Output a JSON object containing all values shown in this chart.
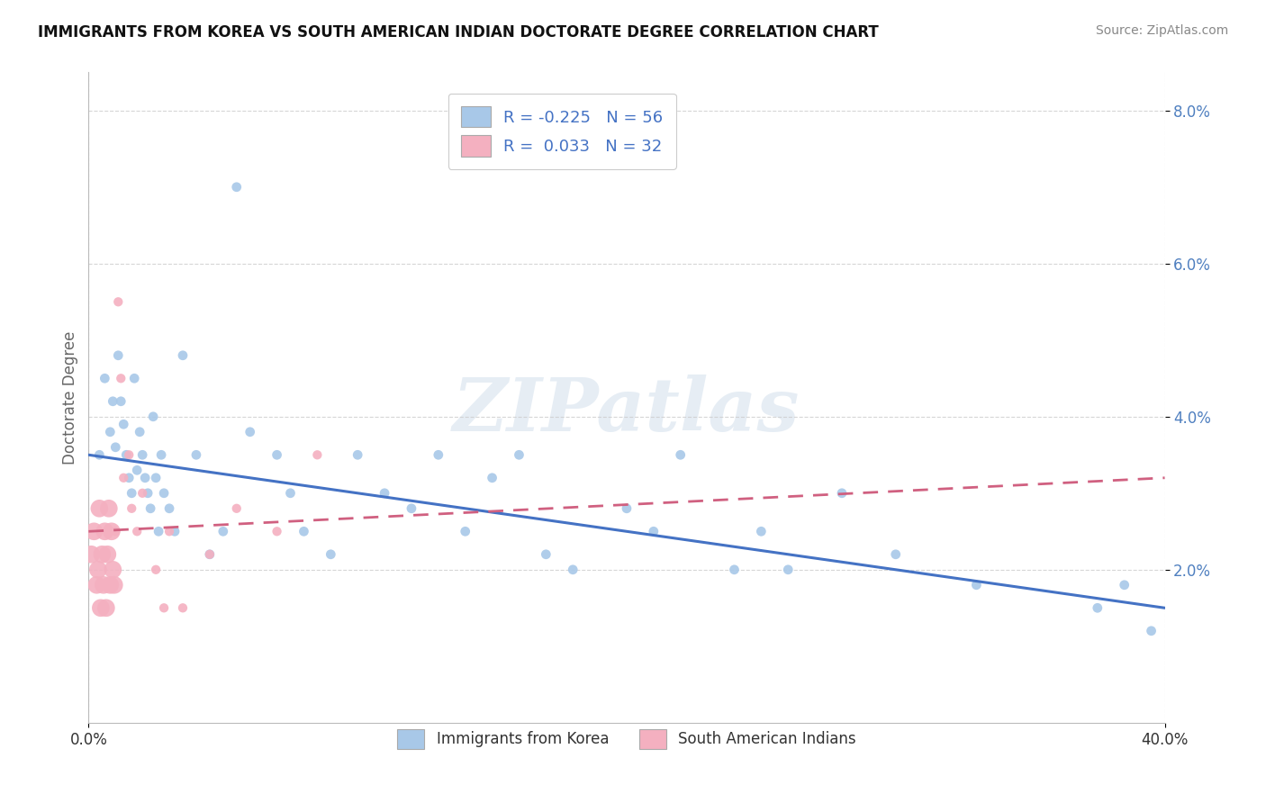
{
  "title": "IMMIGRANTS FROM KOREA VS SOUTH AMERICAN INDIAN DOCTORATE DEGREE CORRELATION CHART",
  "source": "Source: ZipAtlas.com",
  "ylabel": "Doctorate Degree",
  "xmin": 0.0,
  "xmax": 40.0,
  "ymin": 0.0,
  "ymax": 8.5,
  "yticks": [
    2.0,
    4.0,
    6.0,
    8.0
  ],
  "ytick_labels": [
    "2.0%",
    "4.0%",
    "6.0%",
    "8.0%"
  ],
  "legend_korea_r": "R = -0.225",
  "legend_korea_n": "N = 56",
  "legend_sam_r": "R =  0.033",
  "legend_sam_n": "N = 32",
  "legend_label_korea": "Immigrants from Korea",
  "legend_label_sam": "South American Indians",
  "korea_color": "#a8c8e8",
  "sam_color": "#f4b0c0",
  "korea_line_color": "#4472c4",
  "sam_line_color": "#d06080",
  "background_color": "#ffffff",
  "grid_color": "#cccccc",
  "korea_x": [
    0.4,
    0.6,
    0.8,
    0.9,
    1.0,
    1.1,
    1.2,
    1.3,
    1.4,
    1.5,
    1.6,
    1.7,
    1.8,
    1.9,
    2.0,
    2.1,
    2.2,
    2.3,
    2.4,
    2.5,
    2.6,
    2.7,
    2.8,
    3.0,
    3.2,
    3.5,
    4.0,
    4.5,
    5.0,
    5.5,
    6.0,
    7.0,
    7.5,
    8.0,
    9.0,
    10.0,
    11.0,
    12.0,
    13.0,
    14.0,
    15.0,
    16.0,
    17.0,
    18.0,
    20.0,
    21.0,
    22.0,
    24.0,
    25.0,
    26.0,
    28.0,
    30.0,
    33.0,
    37.5,
    38.5,
    39.5
  ],
  "korea_y": [
    3.5,
    4.5,
    3.8,
    4.2,
    3.6,
    4.8,
    4.2,
    3.9,
    3.5,
    3.2,
    3.0,
    4.5,
    3.3,
    3.8,
    3.5,
    3.2,
    3.0,
    2.8,
    4.0,
    3.2,
    2.5,
    3.5,
    3.0,
    2.8,
    2.5,
    4.8,
    3.5,
    2.2,
    2.5,
    7.0,
    3.8,
    3.5,
    3.0,
    2.5,
    2.2,
    3.5,
    3.0,
    2.8,
    3.5,
    2.5,
    3.2,
    3.5,
    2.2,
    2.0,
    2.8,
    2.5,
    3.5,
    2.0,
    2.5,
    2.0,
    3.0,
    2.2,
    1.8,
    1.5,
    1.8,
    1.2
  ],
  "korea_sizes": [
    60,
    60,
    60,
    60,
    60,
    60,
    60,
    60,
    60,
    60,
    60,
    60,
    60,
    60,
    60,
    60,
    60,
    60,
    60,
    60,
    60,
    60,
    60,
    60,
    60,
    60,
    60,
    60,
    60,
    60,
    60,
    60,
    60,
    60,
    60,
    60,
    60,
    60,
    60,
    60,
    60,
    60,
    60,
    60,
    60,
    60,
    60,
    60,
    60,
    60,
    60,
    60,
    60,
    60,
    60,
    60
  ],
  "sam_x": [
    0.1,
    0.2,
    0.3,
    0.35,
    0.4,
    0.45,
    0.5,
    0.55,
    0.6,
    0.65,
    0.7,
    0.75,
    0.8,
    0.85,
    0.9,
    0.95,
    1.0,
    1.1,
    1.2,
    1.3,
    1.5,
    1.6,
    1.8,
    2.0,
    2.5,
    2.8,
    3.0,
    3.5,
    4.5,
    5.5,
    7.0,
    8.5
  ],
  "sam_y": [
    2.2,
    2.5,
    1.8,
    2.0,
    2.8,
    1.5,
    2.2,
    1.8,
    2.5,
    1.5,
    2.2,
    2.8,
    1.8,
    2.5,
    2.0,
    1.8,
    2.5,
    5.5,
    4.5,
    3.2,
    3.5,
    2.8,
    2.5,
    3.0,
    2.0,
    1.5,
    2.5,
    1.5,
    2.2,
    2.8,
    2.5,
    3.5
  ],
  "sam_sizes_base": 55,
  "sam_big_indices": [
    0,
    1,
    2,
    3,
    4,
    5,
    6,
    7,
    8,
    9,
    10,
    11,
    12,
    13,
    14,
    15
  ],
  "sam_big_size": 200,
  "watermark_text": "ZIPatlas",
  "watermark_color": "#c8d8e8",
  "watermark_alpha": 0.45
}
